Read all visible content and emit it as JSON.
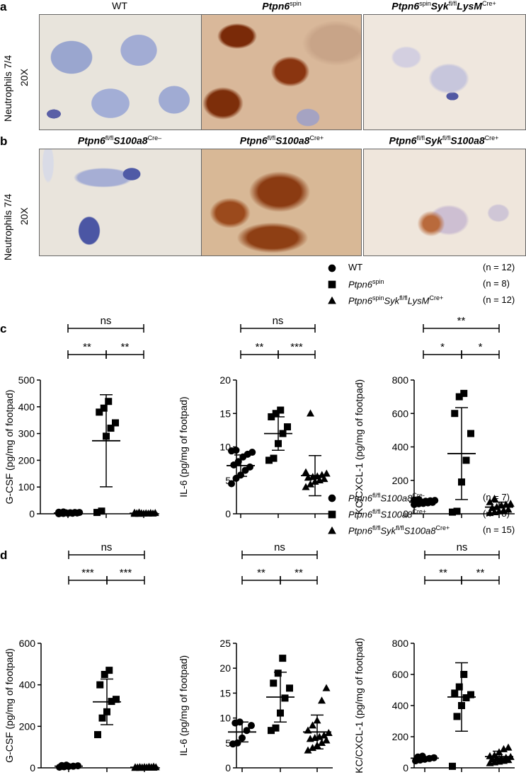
{
  "panel_a": {
    "letter": "a",
    "row_label_1": "Neutrophils 7/4",
    "row_label_2": "20X",
    "titles": [
      {
        "parts": [
          {
            "t": "WT",
            "style": "plain"
          }
        ]
      },
      {
        "parts": [
          {
            "t": "Ptpn6",
            "style": "italic"
          },
          {
            "t": "spin",
            "style": "sup"
          }
        ]
      },
      {
        "parts": [
          {
            "t": "Ptpn6",
            "style": "italic"
          },
          {
            "t": "spin",
            "style": "sup"
          },
          {
            "t": "Syk",
            "style": "italic"
          },
          {
            "t": "fl/fl",
            "style": "sup"
          },
          {
            "t": "LysM",
            "style": "italic"
          },
          {
            "t": "Cre+",
            "style": "sup"
          }
        ]
      }
    ]
  },
  "panel_b": {
    "letter": "b",
    "row_label_1": "Neutrophils 7/4",
    "row_label_2": "20X",
    "titles": [
      {
        "parts": [
          {
            "t": "Ptpn6",
            "style": "italic"
          },
          {
            "t": "fl/fl",
            "style": "sup"
          },
          {
            "t": "S100a8",
            "style": "italic"
          },
          {
            "t": "Cre–",
            "style": "sup"
          }
        ]
      },
      {
        "parts": [
          {
            "t": "Ptpn6",
            "style": "italic"
          },
          {
            "t": "fl/fl",
            "style": "sup"
          },
          {
            "t": "S100a8",
            "style": "italic"
          },
          {
            "t": "Cre+",
            "style": "sup"
          }
        ]
      },
      {
        "parts": [
          {
            "t": "Ptpn6",
            "style": "italic"
          },
          {
            "t": "fl/fl",
            "style": "sup"
          },
          {
            "t": "Syk",
            "style": "italic"
          },
          {
            "t": "fl/fl",
            "style": "sup"
          },
          {
            "t": "S100a8",
            "style": "italic"
          },
          {
            "t": "Cre+",
            "style": "sup"
          }
        ]
      }
    ]
  },
  "legend_c": [
    {
      "symbol": "circle",
      "parts": [
        {
          "t": "WT",
          "style": "plain"
        }
      ],
      "n": "(n = 12)"
    },
    {
      "symbol": "square",
      "parts": [
        {
          "t": "Ptpn6",
          "style": "italic"
        },
        {
          "t": "spin",
          "style": "sup"
        }
      ],
      "n": "(n = 8)"
    },
    {
      "symbol": "triangle",
      "parts": [
        {
          "t": "Ptpn6",
          "style": "italic"
        },
        {
          "t": "spin",
          "style": "sup"
        },
        {
          "t": "Syk",
          "style": "italic"
        },
        {
          "t": "fl/fl",
          "style": "sup"
        },
        {
          "t": "LysM",
          "style": "italic"
        },
        {
          "t": "Cre+",
          "style": "sup"
        }
      ],
      "n": "(n = 12)"
    }
  ],
  "legend_d": [
    {
      "symbol": "circle",
      "parts": [
        {
          "t": "Ptpn6",
          "style": "italic"
        },
        {
          "t": "fl/fl",
          "style": "sup"
        },
        {
          "t": "S100a8",
          "style": "italic"
        },
        {
          "t": "Cre-",
          "style": "sup"
        }
      ],
      "n": "(n = 7)"
    },
    {
      "symbol": "square",
      "parts": [
        {
          "t": "Ptpn6",
          "style": "italic"
        },
        {
          "t": "fl/fl",
          "style": "sup"
        },
        {
          "t": "S100a8",
          "style": "italic"
        },
        {
          "t": "Cre+",
          "style": "sup"
        }
      ],
      "n": "(n = 8)"
    },
    {
      "symbol": "triangle",
      "parts": [
        {
          "t": "Ptpn6",
          "style": "italic"
        },
        {
          "t": "fl/fl",
          "style": "sup"
        },
        {
          "t": "Syk",
          "style": "italic"
        },
        {
          "t": "fl/fl",
          "style": "sup"
        },
        {
          "t": "S100a8",
          "style": "italic"
        },
        {
          "t": "Cre+",
          "style": "sup"
        }
      ],
      "n": "(n = 15)"
    }
  ],
  "panel_c_letter": "c",
  "panel_d_letter": "d",
  "chart_data": [
    {
      "id": "c1",
      "type": "scatter",
      "ylabel": "G-CSF (pg/mg of footpad)",
      "ylim": [
        0,
        500
      ],
      "yticks": [
        0,
        100,
        200,
        300,
        400,
        500
      ],
      "groups": [
        {
          "symbol": "circle",
          "mean": 3,
          "sd": 3,
          "values": [
            0,
            1,
            2,
            2,
            3,
            3,
            4,
            4,
            5,
            5,
            6,
            7
          ]
        },
        {
          "symbol": "square",
          "mean": 273,
          "sd": 172,
          "values": [
            5,
            10,
            290,
            320,
            340,
            380,
            395,
            420
          ]
        },
        {
          "symbol": "triangle",
          "mean": 2,
          "sd": 2,
          "values": [
            0,
            0,
            1,
            1,
            1,
            2,
            2,
            2,
            3,
            3,
            4,
            5
          ]
        }
      ],
      "sig": [
        {
          "from": 0,
          "to": 1,
          "label": "**",
          "level": 0
        },
        {
          "from": 1,
          "to": 2,
          "label": "**",
          "level": 0
        },
        {
          "from": 0,
          "to": 2,
          "label": "ns",
          "level": 1
        }
      ]
    },
    {
      "id": "c2",
      "type": "scatter",
      "ylabel": "IL-6 (pg/mg of footpad)",
      "ylim": [
        0,
        20
      ],
      "yticks": [
        0,
        5,
        10,
        15,
        20
      ],
      "groups": [
        {
          "symbol": "circle",
          "mean": 7.2,
          "sd": 1.6,
          "values": [
            4.5,
            5.3,
            5.8,
            6.5,
            7.0,
            7.3,
            7.8,
            8.5,
            8.9,
            9.2,
            9.4,
            9.5
          ]
        },
        {
          "symbol": "square",
          "mean": 12.0,
          "sd": 2.5,
          "values": [
            8.0,
            8.3,
            10.5,
            12.0,
            13.0,
            14.5,
            15.0,
            15.5
          ]
        },
        {
          "symbol": "triangle",
          "mean": 5.7,
          "sd": 3.0,
          "values": [
            4.0,
            4.4,
            4.8,
            5.0,
            5.2,
            5.4,
            5.5,
            5.6,
            5.8,
            6.0,
            6.2,
            15.0
          ]
        }
      ],
      "sig": [
        {
          "from": 0,
          "to": 1,
          "label": "**",
          "level": 0
        },
        {
          "from": 1,
          "to": 2,
          "label": "***",
          "level": 0
        },
        {
          "from": 0,
          "to": 2,
          "label": "ns",
          "level": 1
        }
      ]
    },
    {
      "id": "c3",
      "type": "scatter",
      "ylabel": "KC/CXCL-1 (pg/mg of footpad)",
      "ylim": [
        0,
        800
      ],
      "yticks": [
        0,
        200,
        400,
        600,
        800
      ],
      "groups": [
        {
          "symbol": "circle",
          "mean": 70,
          "sd": 10,
          "values": [
            55,
            60,
            62,
            65,
            68,
            70,
            72,
            75,
            78,
            80,
            82,
            85
          ]
        },
        {
          "symbol": "square",
          "mean": 360,
          "sd": 275,
          "values": [
            10,
            15,
            190,
            320,
            480,
            600,
            700,
            720
          ]
        },
        {
          "symbol": "triangle",
          "mean": 40,
          "sd": 30,
          "values": [
            5,
            10,
            15,
            20,
            25,
            35,
            40,
            50,
            55,
            60,
            70,
            90
          ]
        }
      ],
      "sig": [
        {
          "from": 0,
          "to": 1,
          "label": "*",
          "level": 0
        },
        {
          "from": 1,
          "to": 2,
          "label": "*",
          "level": 0
        },
        {
          "from": 0,
          "to": 2,
          "label": "**",
          "level": 1
        }
      ]
    },
    {
      "id": "d1",
      "type": "scatter",
      "ylabel": "G-CSF (pg/mg of footpad)",
      "ylim": [
        0,
        600
      ],
      "yticks": [
        0,
        200,
        400,
        600
      ],
      "groups": [
        {
          "symbol": "circle",
          "mean": 8,
          "sd": 4,
          "values": [
            3,
            5,
            7,
            8,
            10,
            11,
            13
          ]
        },
        {
          "symbol": "square",
          "mean": 318,
          "sd": 110,
          "values": [
            160,
            240,
            270,
            320,
            330,
            400,
            450,
            470
          ]
        },
        {
          "symbol": "triangle",
          "mean": 3,
          "sd": 2,
          "values": [
            0,
            0,
            1,
            1,
            1,
            2,
            2,
            2,
            3,
            3,
            3,
            4,
            4,
            5,
            6
          ]
        }
      ],
      "sig": [
        {
          "from": 0,
          "to": 1,
          "label": "***",
          "level": 0
        },
        {
          "from": 1,
          "to": 2,
          "label": "***",
          "level": 0
        },
        {
          "from": 0,
          "to": 2,
          "label": "ns",
          "level": 1
        }
      ]
    },
    {
      "id": "d2",
      "type": "scatter",
      "ylabel": "IL-6 (pg/mg of footpad)",
      "ylim": [
        0,
        25
      ],
      "yticks": [
        0,
        5,
        10,
        15,
        20,
        25
      ],
      "groups": [
        {
          "symbol": "circle",
          "mean": 7.2,
          "sd": 2.0,
          "values": [
            4.8,
            5.0,
            6.0,
            7.5,
            8.5,
            9.0,
            9.2
          ]
        },
        {
          "symbol": "square",
          "mean": 14.2,
          "sd": 5.0,
          "values": [
            7.5,
            8.0,
            11.0,
            14.0,
            16.0,
            17.0,
            19.0,
            22.0
          ]
        },
        {
          "symbol": "triangle",
          "mean": 7.2,
          "sd": 3.4,
          "values": [
            3.5,
            4.0,
            4.5,
            5.0,
            5.5,
            5.8,
            6.0,
            6.2,
            6.5,
            7.0,
            7.5,
            8.5,
            9.5,
            13.5,
            16.0
          ]
        }
      ],
      "sig": [
        {
          "from": 0,
          "to": 1,
          "label": "**",
          "level": 0
        },
        {
          "from": 1,
          "to": 2,
          "label": "**",
          "level": 0
        },
        {
          "from": 0,
          "to": 2,
          "label": "ns",
          "level": 1
        }
      ]
    },
    {
      "id": "d3",
      "type": "scatter",
      "ylabel": "KC/CXCL-1 (pg/mg of footpad)",
      "ylim": [
        0,
        800
      ],
      "yticks": [
        0,
        200,
        400,
        600,
        800
      ],
      "groups": [
        {
          "symbol": "circle",
          "mean": 62,
          "sd": 10,
          "values": [
            45,
            50,
            55,
            60,
            65,
            70,
            75
          ]
        },
        {
          "symbol": "square",
          "mean": 455,
          "sd": 220,
          "values": [
            10,
            330,
            400,
            450,
            470,
            480,
            520,
            600
          ]
        },
        {
          "symbol": "triangle",
          "mean": 72,
          "sd": 35,
          "values": [
            30,
            35,
            40,
            45,
            50,
            55,
            60,
            60,
            65,
            70,
            75,
            80,
            100,
            120,
            130
          ]
        }
      ],
      "sig": [
        {
          "from": 0,
          "to": 1,
          "label": "**",
          "level": 0
        },
        {
          "from": 1,
          "to": 2,
          "label": "**",
          "level": 0
        },
        {
          "from": 0,
          "to": 2,
          "label": "ns",
          "level": 1
        }
      ]
    }
  ]
}
